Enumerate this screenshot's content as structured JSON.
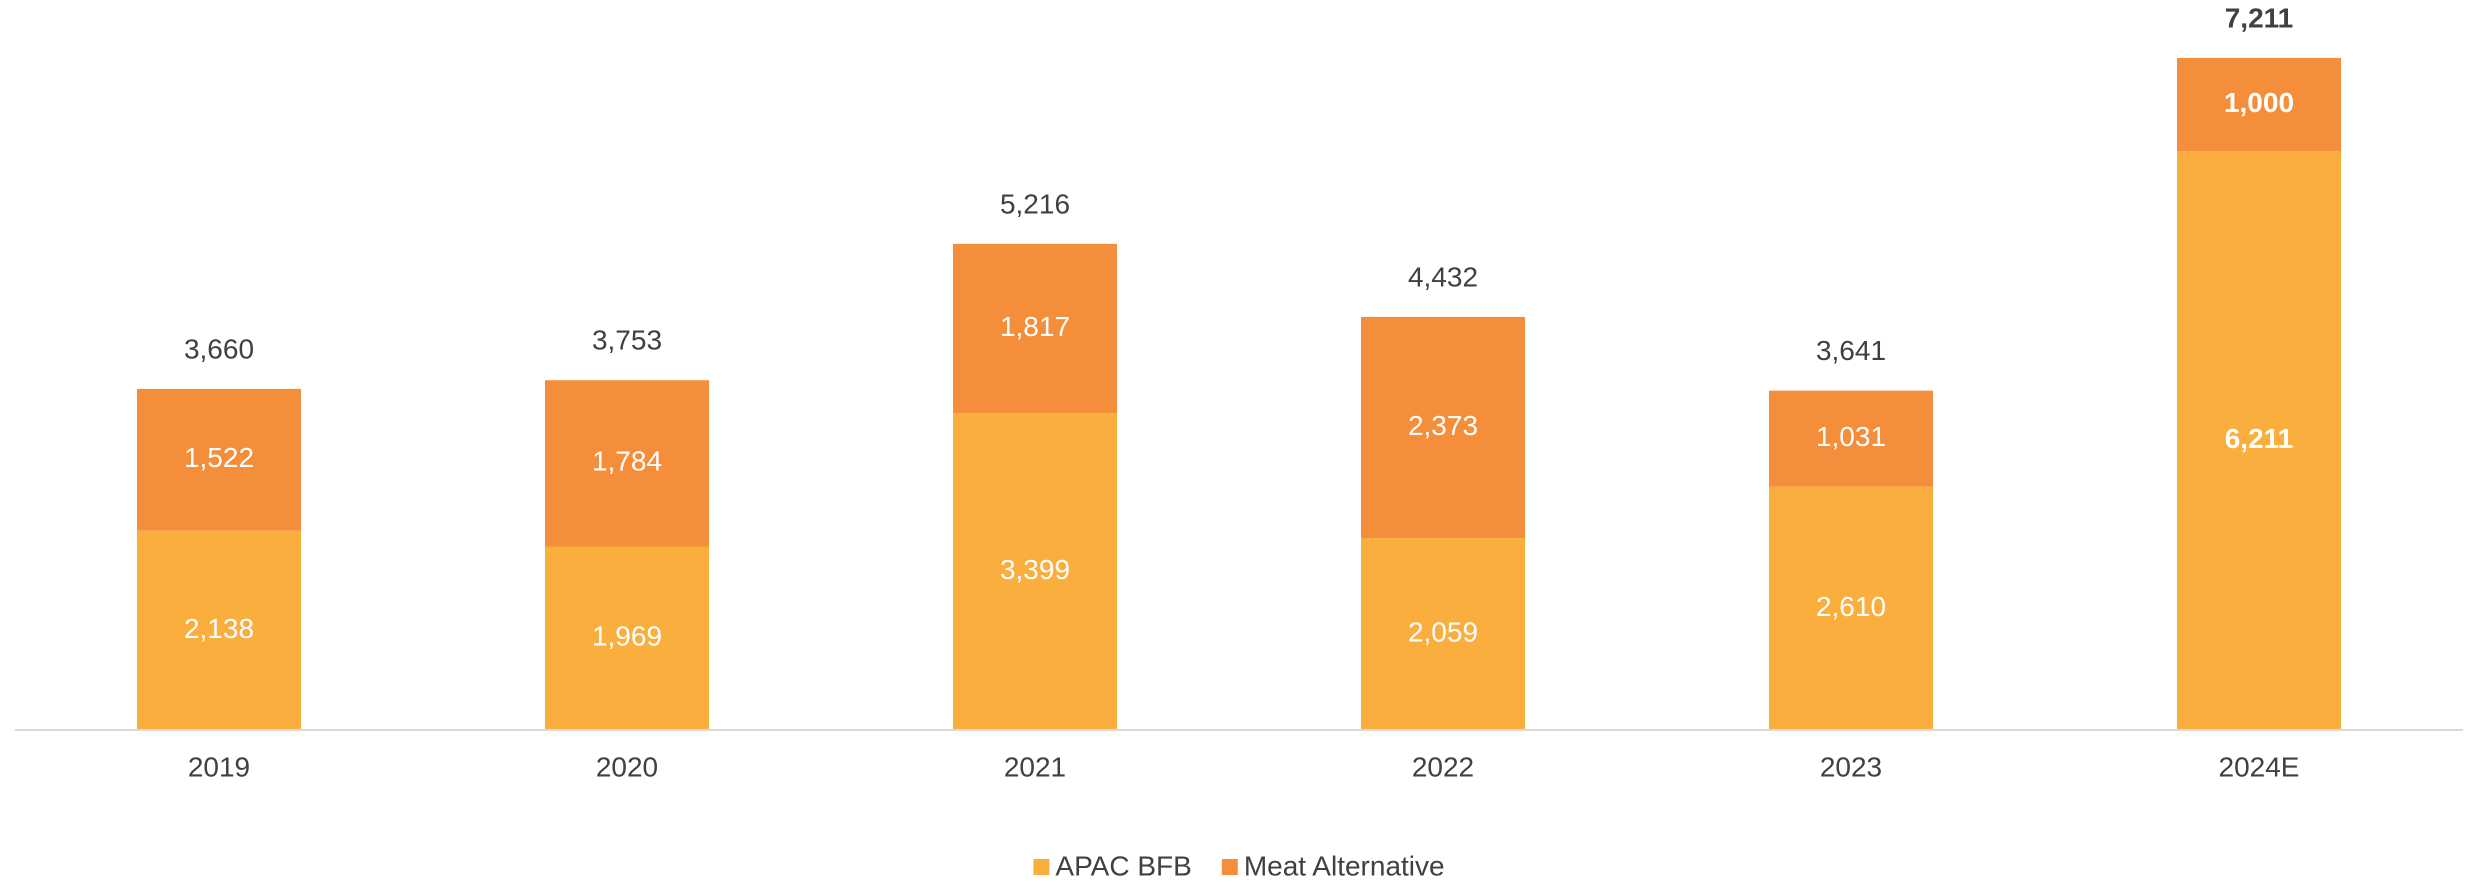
{
  "chart_data": {
    "type": "stacked_bar",
    "categories": [
      "2019",
      "2020",
      "2021",
      "2022",
      "2023",
      "2024E"
    ],
    "series": [
      {
        "name": "APAC BFB",
        "color": "#F9AE3D",
        "values": [
          2138,
          1969,
          3399,
          2059,
          2610,
          6211
        ],
        "value_labels": [
          "2,138",
          "1,969",
          "3,399",
          "2,059",
          "2,610",
          "6,211"
        ]
      },
      {
        "name": "Meat Alternative",
        "color": "#F58E3A",
        "values": [
          1522,
          1784,
          1817,
          2373,
          1031,
          1000
        ],
        "value_labels": [
          "1,522",
          "1,784",
          "1,817",
          "2,373",
          "1,031",
          "1,000"
        ]
      }
    ],
    "totals": [
      3660,
      3753,
      5216,
      4432,
      3641,
      7211
    ],
    "total_labels": [
      "3,660",
      "3,753",
      "5,216",
      "4,432",
      "3,641",
      "7,211"
    ],
    "ylim": [
      0,
      7500
    ],
    "legend": "bottom"
  }
}
